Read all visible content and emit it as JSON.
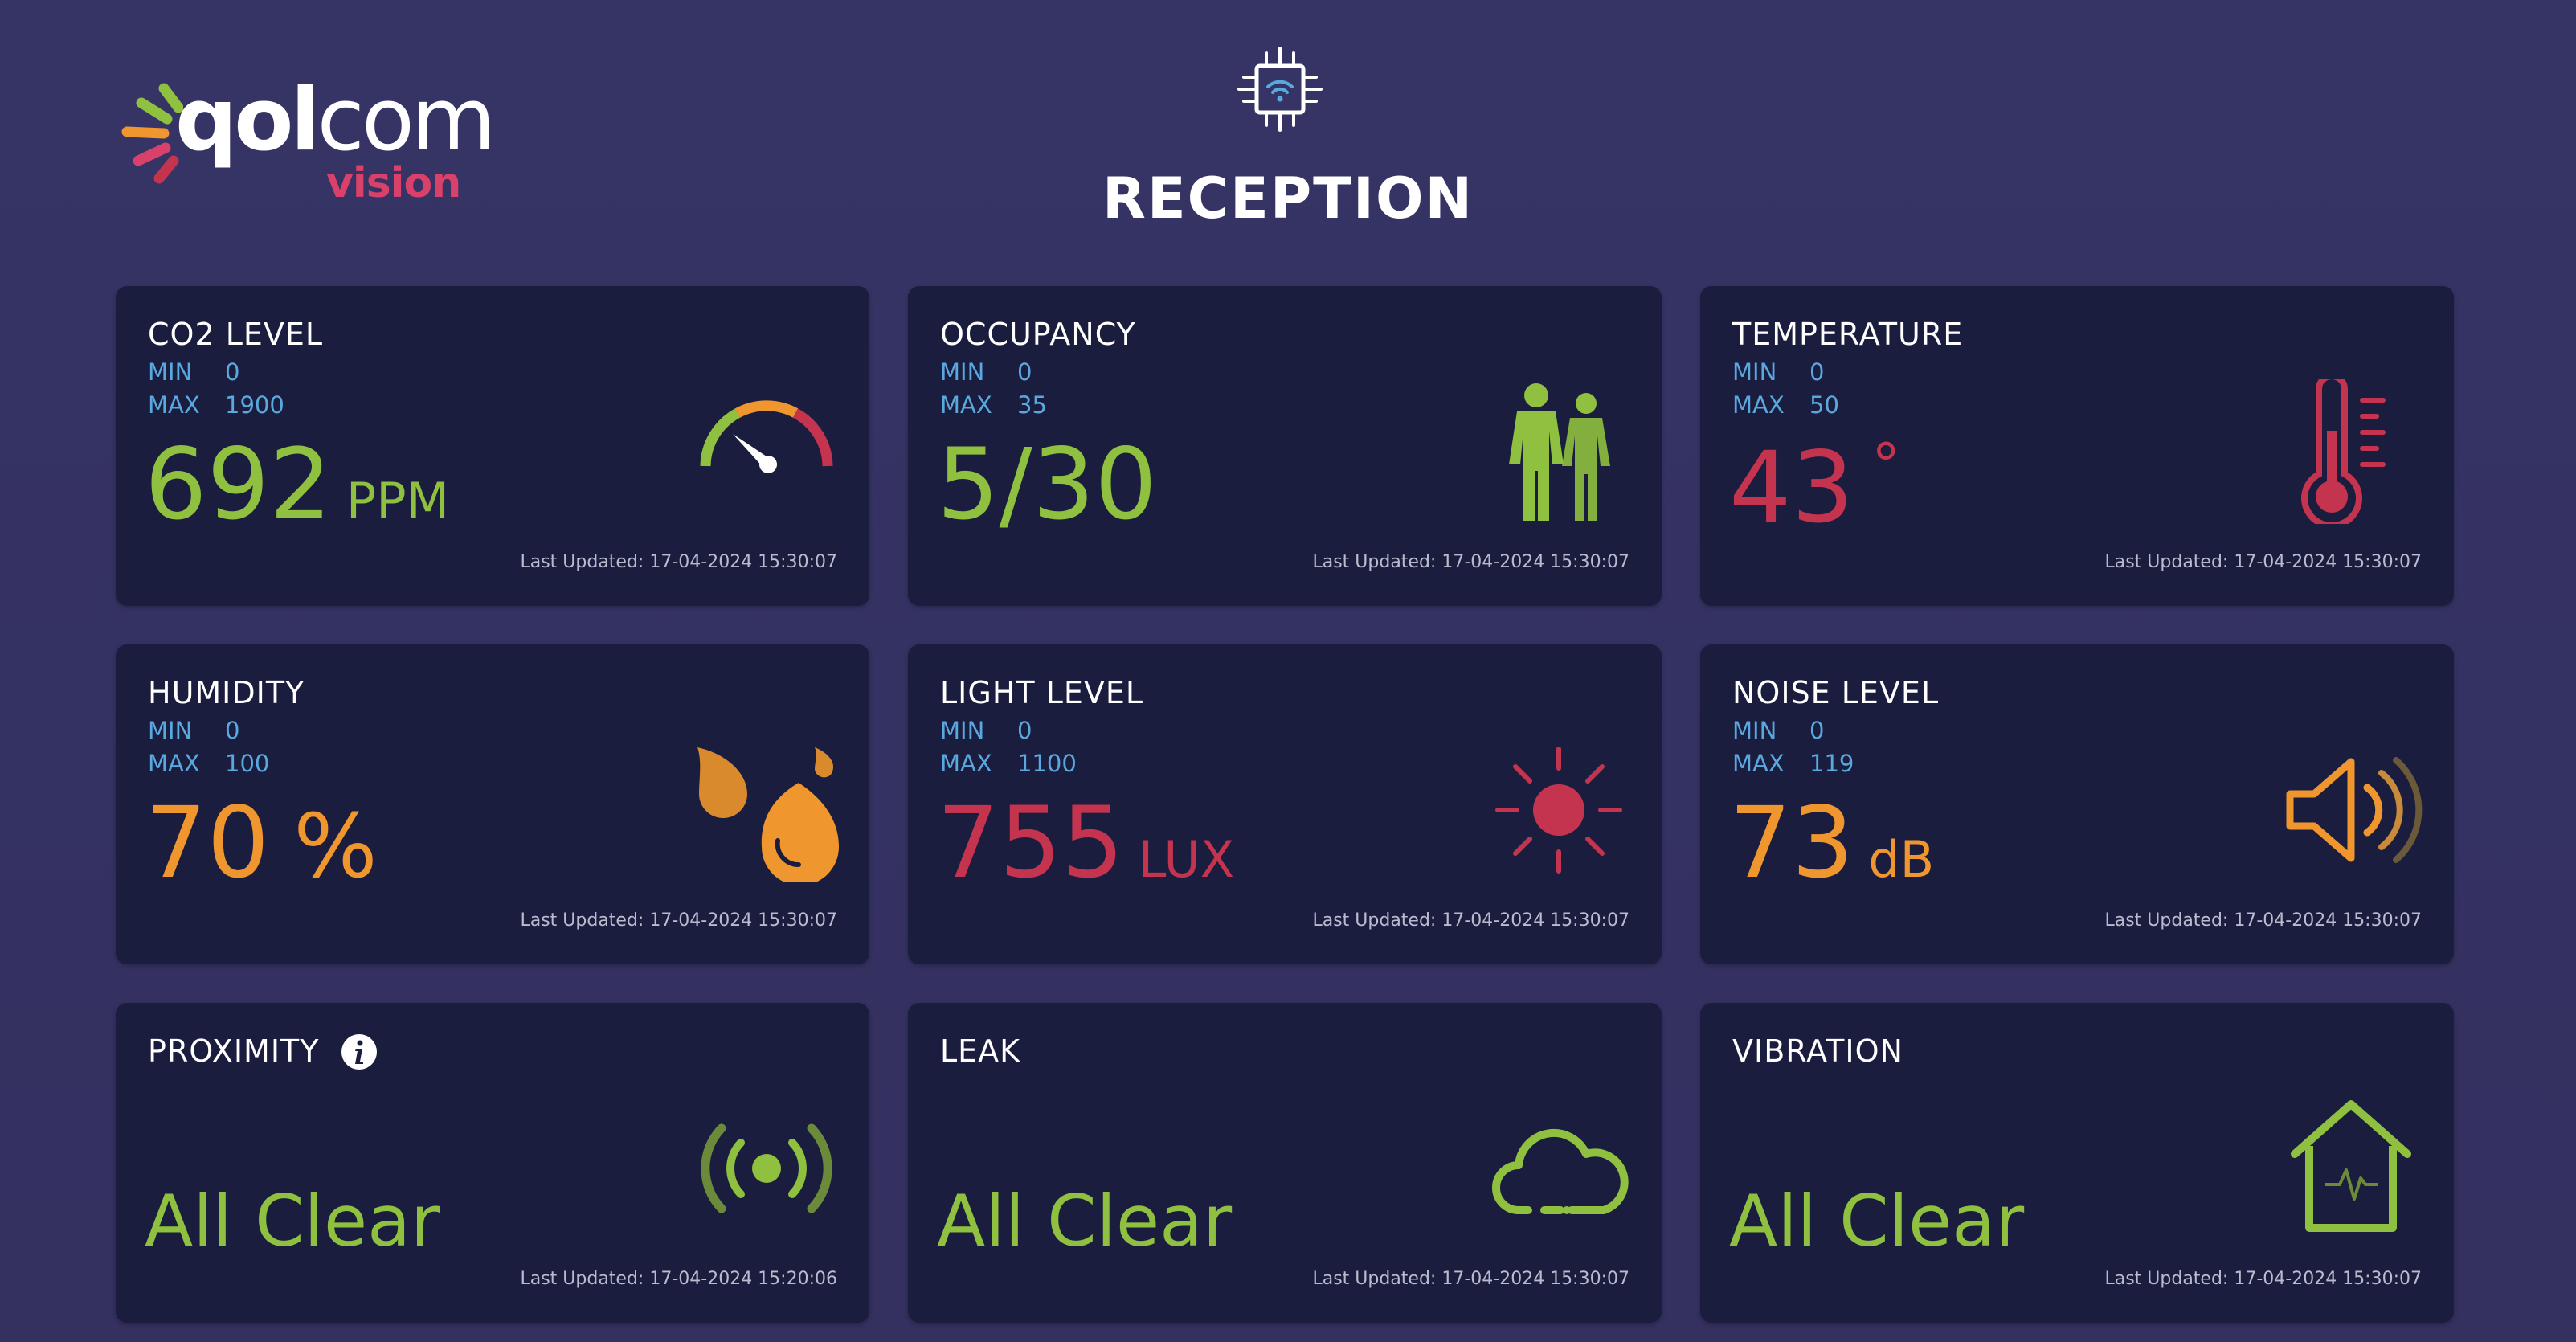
{
  "header": {
    "logo_word_bold": "qol",
    "logo_word_thin": "com",
    "logo_sub": "vision",
    "title": "RECEPTION",
    "chip_icon": "chip-wifi-icon"
  },
  "colors": {
    "background": "#34325f",
    "card": "#1b1d3e",
    "green": "#8fc03f",
    "red": "#c5344f",
    "orange": "#f0962e",
    "minmax_blue": "#5aa8e0"
  },
  "cards": {
    "co2": {
      "title": "CO2 LEVEL",
      "min_label": "MIN",
      "min": "0",
      "max_label": "MAX",
      "max": "1900",
      "value": "692",
      "unit": "PPM",
      "updated": "Last Updated: 17-04-2024 15:30:07",
      "icon": "gauge-icon"
    },
    "occupancy": {
      "title": "OCCUPANCY",
      "min_label": "MIN",
      "min": "0",
      "max_label": "MAX",
      "max": "35",
      "value": "5/30",
      "updated": "Last Updated: 17-04-2024 15:30:07",
      "icon": "people-icon"
    },
    "temperature": {
      "title": "TEMPERATURE",
      "min_label": "MIN",
      "min": "0",
      "max_label": "MAX",
      "max": "50",
      "value": "43",
      "unit": "°",
      "updated": "Last Updated: 17-04-2024 15:30:07",
      "icon": "thermometer-icon"
    },
    "humidity": {
      "title": "HUMIDITY",
      "min_label": "MIN",
      "min": "0",
      "max_label": "MAX",
      "max": "100",
      "value": "70",
      "unit": "%",
      "updated": "Last Updated: 17-04-2024 15:30:07",
      "icon": "water-drops-icon"
    },
    "light": {
      "title": "LIGHT LEVEL",
      "min_label": "MIN",
      "min": "0",
      "max_label": "MAX",
      "max": "1100",
      "value": "755",
      "unit": "LUX",
      "updated": "Last Updated: 17-04-2024 15:30:07",
      "icon": "sun-icon"
    },
    "noise": {
      "title": "NOISE LEVEL",
      "min_label": "MIN",
      "min": "0",
      "max_label": "MAX",
      "max": "119",
      "value": "73",
      "unit": "dB",
      "updated": "Last Updated: 17-04-2024 15:30:07",
      "icon": "speaker-icon"
    },
    "proximity": {
      "title": "PROXIMITY",
      "status": "All Clear",
      "updated": "Last Updated: 17-04-2024 15:20:06",
      "icon": "broadcast-icon",
      "info_icon": "info-icon"
    },
    "leak": {
      "title": "LEAK",
      "status": "All Clear",
      "updated": "Last Updated: 17-04-2024 15:30:07",
      "icon": "cloud-icon"
    },
    "vibration": {
      "title": "VIBRATION",
      "status": "All Clear",
      "updated": "Last Updated: 17-04-2024 15:30:07",
      "icon": "house-pulse-icon"
    }
  }
}
